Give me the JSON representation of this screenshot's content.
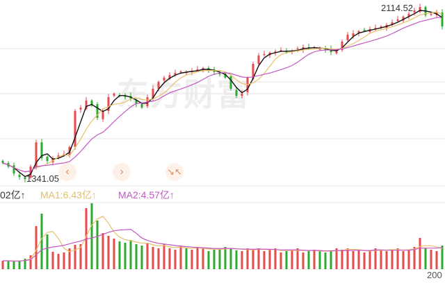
{
  "watermark": "东方财富",
  "colors": {
    "up": "#e84a4a",
    "down": "#2fa82f",
    "ma_short": "#111111",
    "ma1": "#e8c06a",
    "ma2": "#c456c4",
    "grid": "#e6e6e6"
  },
  "nav": {
    "prev_icon": "chevron-left-icon",
    "next_icon": "chevron-right-icon",
    "collapse_icon": "shrink-arrows-icon"
  },
  "volume_legend": {
    "vol": "02亿↑",
    "ma1": "MA1:6.43亿↑",
    "ma2": "MA2:4.57亿↑"
  },
  "chart_data": {
    "type": "candlestick",
    "price_annotations": {
      "high": "2114.52",
      "low": "1341.05"
    },
    "x_tick_partial": "200",
    "close": [
      1413,
      1397,
      1366,
      1350,
      1341,
      1397,
      1506,
      1435,
      1422,
      1435,
      1447,
      1453,
      1485,
      1647,
      1662,
      1694,
      1672,
      1616,
      1647,
      1709,
      1725,
      1715,
      1709,
      1703,
      1678,
      1662,
      1709,
      1747,
      1778,
      1797,
      1809,
      1818,
      1825,
      1822,
      1828,
      1834,
      1840,
      1828,
      1822,
      1815,
      1797,
      1747,
      1715,
      1725,
      1797,
      1859,
      1896,
      1903,
      1909,
      1915,
      1921,
      1912,
      1918,
      1928,
      1934,
      1928,
      1934,
      1928,
      1921,
      1912,
      1921,
      1959,
      1990,
      1996,
      2006,
      2009,
      2015,
      2021,
      2027,
      2034,
      2046,
      2059,
      2071,
      2084,
      2099,
      2114.52,
      2077,
      2084,
      2090,
      2027
    ],
    "volume": [
      12,
      12,
      11,
      12,
      15,
      20,
      62,
      80,
      50,
      25,
      22,
      24,
      30,
      35,
      36,
      88,
      95,
      70,
      52,
      48,
      44,
      40,
      38,
      42,
      36,
      34,
      38,
      32,
      30,
      36,
      30,
      28,
      34,
      30,
      28,
      32,
      30,
      26,
      28,
      30,
      32,
      30,
      27,
      26,
      30,
      28,
      30,
      26,
      28,
      30,
      24,
      26,
      28,
      30,
      24,
      26,
      28,
      26,
      24,
      26,
      30,
      28,
      30,
      26,
      28,
      24,
      26,
      30,
      28,
      26,
      28,
      30,
      26,
      28,
      32,
      45,
      30,
      28,
      26,
      34
    ],
    "price_range": [
      1304,
      2146
    ]
  }
}
